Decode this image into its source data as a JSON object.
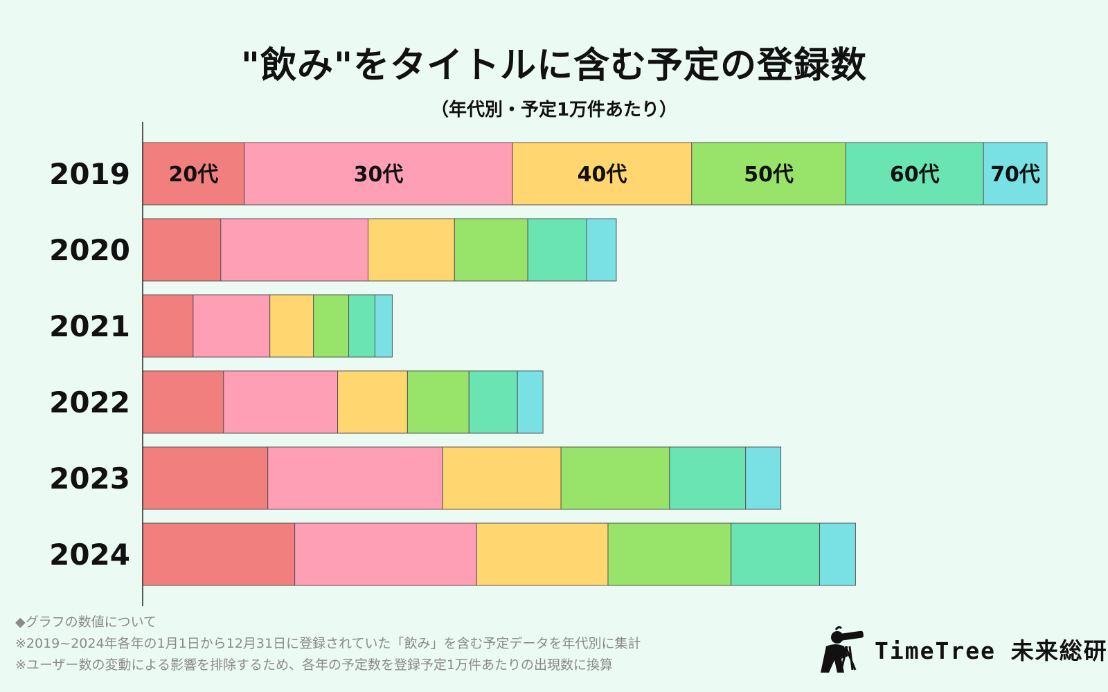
{
  "title": "\"飲み\"をタイトルに含む予定の登録数",
  "subtitle": "（年代別・予定1万件あたり）",
  "chart_data": {
    "type": "bar",
    "orientation": "horizontal",
    "stacked": true,
    "categories": [
      "2019",
      "2020",
      "2021",
      "2022",
      "2023",
      "2024"
    ],
    "series": [
      {
        "name": "20代",
        "color": "#f07f7d",
        "values": [
          147,
          113,
          73,
          117,
          181,
          220
        ]
      },
      {
        "name": "30代",
        "color": "#ff9fb6",
        "values": [
          388,
          213,
          111,
          165,
          253,
          263
        ]
      },
      {
        "name": "40代",
        "color": "#ffd670",
        "values": [
          259,
          125,
          63,
          101,
          171,
          190
        ]
      },
      {
        "name": "50代",
        "color": "#98e36a",
        "values": [
          223,
          106,
          51,
          89,
          157,
          178
        ]
      },
      {
        "name": "60代",
        "color": "#6ae4b3",
        "values": [
          199,
          85,
          38,
          70,
          110,
          128
        ]
      },
      {
        "name": "70代",
        "color": "#79e1e4",
        "values": [
          92,
          43,
          25,
          37,
          51,
          52
        ]
      }
    ],
    "xlim": [
      0,
      1400
    ],
    "axis_unit_note": "values estimated per 10,000 events; no axis ticks shown"
  },
  "notes": {
    "heading": "◆グラフの数値について",
    "line1": "※2019~2024年各年の1月1日から12月31日に登録されていた「飲み」を含む予定データを年代別に集計",
    "line2": "※ユーザー数の変動による影響を排除するため、各年の予定数を登録予定1万件あたりの出現数に換算"
  },
  "logo": {
    "icon": "telescope-person-icon",
    "text": "TimeTree 未来総研"
  }
}
